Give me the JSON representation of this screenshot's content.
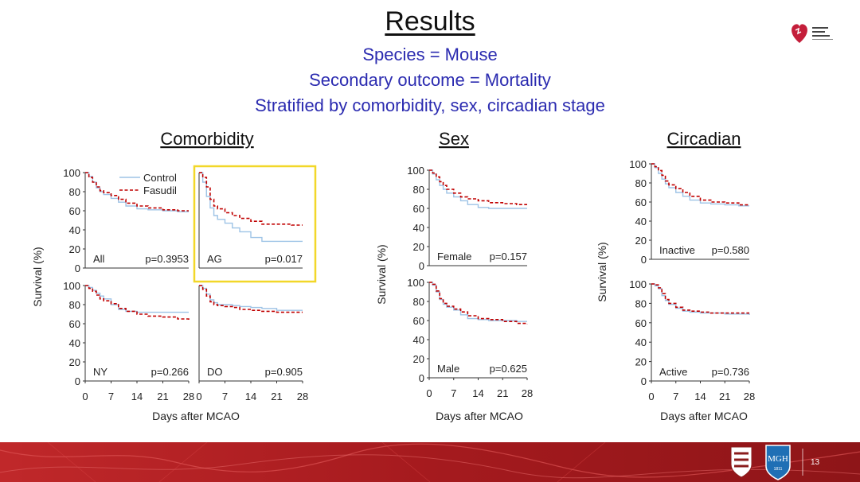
{
  "slide": {
    "title": "Results",
    "subtitle_lines": [
      "Species = Mouse",
      "Secondary outcome = Mortality",
      "Stratified by comorbidity, sex, circadian stage"
    ],
    "page_number": "13",
    "logo_text": "American Stroke Association",
    "mgh_text": "MGH",
    "mgh_year": "1811"
  },
  "colors": {
    "control": "#9dc3e6",
    "fasudil": "#c00000",
    "highlight": "#f2d729",
    "subtitle": "#2b2bb0",
    "footer": "#b01c1c"
  },
  "chart_data": [
    {
      "group": "Comorbidity",
      "type": "line",
      "ylabel": "Survival (%)",
      "xlabel": "Days after MCAO",
      "x_ticks": [
        0,
        7,
        14,
        21,
        28
      ],
      "y_ticks": [
        0,
        20,
        40,
        60,
        80,
        100
      ],
      "xlim": [
        0,
        28
      ],
      "ylim": [
        0,
        100
      ],
      "legend": [
        "Control",
        "Fasudil"
      ],
      "legend_position": "top-right of first panel",
      "panels": [
        {
          "label": "All",
          "p_value": "p=0.3953",
          "highlighted": false,
          "series": [
            {
              "name": "Control",
              "style": "solid",
              "x": [
                0,
                1,
                2,
                3,
                4,
                5,
                7,
                9,
                11,
                14,
                17,
                21,
                25,
                28
              ],
              "y": [
                100,
                96,
                90,
                84,
                80,
                77,
                73,
                69,
                65,
                62,
                61,
                60,
                59,
                59
              ]
            },
            {
              "name": "Fasudil",
              "style": "dashed",
              "x": [
                0,
                1,
                2,
                3,
                4,
                5,
                7,
                9,
                11,
                14,
                17,
                21,
                25,
                28
              ],
              "y": [
                100,
                95,
                90,
                85,
                81,
                79,
                76,
                72,
                68,
                65,
                63,
                61,
                60,
                60
              ]
            }
          ]
        },
        {
          "label": "AG",
          "p_value": "p=0.017",
          "highlighted": true,
          "series": [
            {
              "name": "Control",
              "style": "solid",
              "x": [
                0,
                1,
                2,
                3,
                4,
                5,
                7,
                9,
                11,
                14,
                17,
                21,
                25,
                28
              ],
              "y": [
                100,
                90,
                75,
                63,
                55,
                51,
                47,
                42,
                38,
                32,
                28,
                28,
                28,
                28
              ]
            },
            {
              "name": "Fasudil",
              "style": "dashed",
              "x": [
                0,
                1,
                2,
                3,
                4,
                5,
                7,
                9,
                11,
                14,
                17,
                21,
                25,
                28
              ],
              "y": [
                100,
                95,
                85,
                72,
                65,
                62,
                58,
                55,
                52,
                49,
                46,
                46,
                45,
                45
              ]
            }
          ]
        },
        {
          "label": "NY",
          "p_value": "p=0.266",
          "highlighted": false,
          "series": [
            {
              "name": "Control",
              "style": "solid",
              "x": [
                0,
                1,
                2,
                3,
                4,
                5,
                7,
                9,
                11,
                14,
                17,
                21,
                25,
                28
              ],
              "y": [
                100,
                98,
                95,
                92,
                89,
                86,
                80,
                75,
                73,
                72,
                72,
                72,
                72,
                72
              ]
            },
            {
              "name": "Fasudil",
              "style": "dashed",
              "x": [
                0,
                1,
                2,
                3,
                4,
                5,
                7,
                9,
                11,
                14,
                17,
                21,
                25,
                28
              ],
              "y": [
                100,
                97,
                94,
                90,
                86,
                84,
                81,
                76,
                73,
                70,
                68,
                67,
                65,
                64
              ]
            }
          ]
        },
        {
          "label": "DO",
          "p_value": "p=0.905",
          "highlighted": false,
          "series": [
            {
              "name": "Control",
              "style": "solid",
              "x": [
                0,
                1,
                2,
                3,
                4,
                5,
                7,
                9,
                11,
                14,
                17,
                21,
                25,
                28
              ],
              "y": [
                100,
                97,
                91,
                85,
                82,
                80,
                80,
                79,
                78,
                77,
                76,
                74,
                74,
                74
              ]
            },
            {
              "name": "Fasudil",
              "style": "dashed",
              "x": [
                0,
                1,
                2,
                3,
                4,
                5,
                7,
                9,
                11,
                14,
                17,
                21,
                25,
                28
              ],
              "y": [
                100,
                96,
                89,
                83,
                80,
                79,
                78,
                77,
                75,
                74,
                73,
                72,
                72,
                72
              ]
            }
          ]
        }
      ]
    },
    {
      "group": "Sex",
      "type": "line",
      "ylabel": "Survival (%)",
      "xlabel": "Days after MCAO",
      "x_ticks": [
        0,
        7,
        14,
        21,
        28
      ],
      "y_ticks": [
        0,
        20,
        40,
        60,
        80,
        100
      ],
      "xlim": [
        0,
        28
      ],
      "ylim": [
        0,
        100
      ],
      "panels": [
        {
          "label": "Female",
          "p_value": "p=0.157",
          "highlighted": false,
          "series": [
            {
              "name": "Control",
              "style": "solid",
              "x": [
                0,
                1,
                2,
                3,
                4,
                5,
                7,
                9,
                11,
                14,
                17,
                21,
                25,
                28
              ],
              "y": [
                100,
                96,
                90,
                84,
                80,
                76,
                72,
                68,
                64,
                61,
                60,
                60,
                60,
                60
              ]
            },
            {
              "name": "Fasudil",
              "style": "dashed",
              "x": [
                0,
                1,
                2,
                3,
                4,
                5,
                7,
                9,
                11,
                14,
                17,
                21,
                25,
                28
              ],
              "y": [
                100,
                97,
                93,
                88,
                84,
                80,
                76,
                72,
                70,
                68,
                66,
                65,
                64,
                64
              ]
            }
          ]
        },
        {
          "label": "Male",
          "p_value": "p=0.625",
          "highlighted": false,
          "series": [
            {
              "name": "Control",
              "style": "solid",
              "x": [
                0,
                1,
                2,
                3,
                4,
                5,
                7,
                9,
                11,
                14,
                17,
                21,
                25,
                28
              ],
              "y": [
                100,
                97,
                90,
                82,
                77,
                74,
                71,
                66,
                62,
                61,
                60,
                60,
                59,
                59
              ]
            },
            {
              "name": "Fasudil",
              "style": "dashed",
              "x": [
                0,
                1,
                2,
                3,
                4,
                5,
                7,
                9,
                11,
                14,
                17,
                21,
                25,
                28
              ],
              "y": [
                100,
                98,
                91,
                83,
                78,
                75,
                72,
                69,
                65,
                62,
                61,
                59,
                57,
                56
              ]
            }
          ]
        }
      ]
    },
    {
      "group": "Circadian",
      "type": "line",
      "ylabel": "Survival (%)",
      "xlabel": "Days after MCAO",
      "x_ticks": [
        0,
        7,
        14,
        21,
        28
      ],
      "y_ticks": [
        0,
        20,
        40,
        60,
        80,
        100
      ],
      "xlim": [
        0,
        28
      ],
      "ylim": [
        0,
        100
      ],
      "panels": [
        {
          "label": "Inactive",
          "p_value": "p=0.580",
          "highlighted": false,
          "series": [
            {
              "name": "Control",
              "style": "solid",
              "x": [
                0,
                1,
                2,
                3,
                4,
                5,
                7,
                9,
                11,
                14,
                17,
                21,
                25,
                28
              ],
              "y": [
                100,
                96,
                90,
                84,
                79,
                75,
                70,
                66,
                62,
                59,
                58,
                57,
                56,
                56
              ]
            },
            {
              "name": "Fasudil",
              "style": "dashed",
              "x": [
                0,
                1,
                2,
                3,
                4,
                5,
                7,
                9,
                11,
                14,
                17,
                21,
                25,
                28
              ],
              "y": [
                100,
                97,
                93,
                88,
                82,
                78,
                74,
                70,
                66,
                62,
                60,
                59,
                57,
                57
              ]
            }
          ]
        },
        {
          "label": "Active",
          "p_value": "p=0.736",
          "highlighted": false,
          "series": [
            {
              "name": "Control",
              "style": "solid",
              "x": [
                0,
                1,
                2,
                3,
                4,
                5,
                7,
                9,
                11,
                14,
                17,
                21,
                25,
                28
              ],
              "y": [
                100,
                98,
                95,
                88,
                83,
                79,
                75,
                72,
                71,
                70,
                70,
                69,
                69,
                68
              ]
            },
            {
              "name": "Fasudil",
              "style": "dashed",
              "x": [
                0,
                1,
                2,
                3,
                4,
                5,
                7,
                9,
                11,
                14,
                17,
                21,
                25,
                28
              ],
              "y": [
                100,
                99,
                96,
                90,
                84,
                80,
                76,
                73,
                72,
                71,
                70,
                70,
                70,
                70
              ]
            }
          ]
        }
      ]
    }
  ]
}
